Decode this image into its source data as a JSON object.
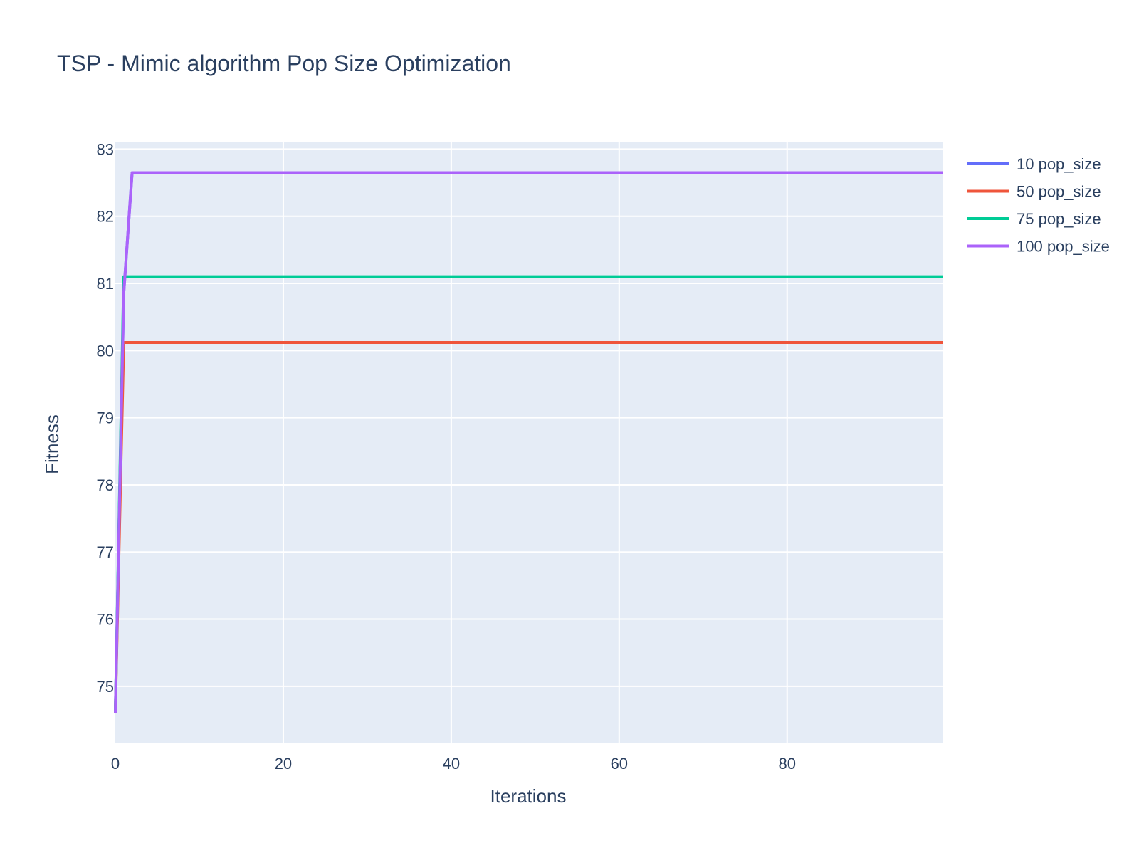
{
  "chart_data": {
    "type": "line",
    "title": "TSP - Mimic algorithm Pop Size Optimization",
    "xlabel": "Iterations",
    "ylabel": "Fitness",
    "xlim": [
      0,
      98.5
    ],
    "ylim": [
      74.15,
      83.1
    ],
    "xticks": [
      0,
      20,
      40,
      60,
      80
    ],
    "yticks": [
      75,
      76,
      77,
      78,
      79,
      80,
      81,
      82,
      83
    ],
    "grid": true,
    "legend_position": "top-right",
    "background_color": "#e5ecf6",
    "grid_color": "#ffffff",
    "series": [
      {
        "name": "10 pop_size",
        "color": "#636efa",
        "x": [
          0,
          1,
          2,
          98.5
        ],
        "y": [
          74.6,
          80.85,
          82.65,
          82.65
        ]
      },
      {
        "name": "50 pop_size",
        "color": "#ef553b",
        "x": [
          0,
          1,
          98.5
        ],
        "y": [
          74.6,
          80.12,
          80.12
        ]
      },
      {
        "name": "75 pop_size",
        "color": "#00cc96",
        "x": [
          0,
          1,
          98.5
        ],
        "y": [
          74.6,
          81.1,
          81.1
        ]
      },
      {
        "name": "100 pop_size",
        "color": "#ab63fa",
        "x": [
          0,
          1,
          2,
          98.5
        ],
        "y": [
          74.6,
          80.85,
          82.65,
          82.65
        ]
      }
    ]
  }
}
